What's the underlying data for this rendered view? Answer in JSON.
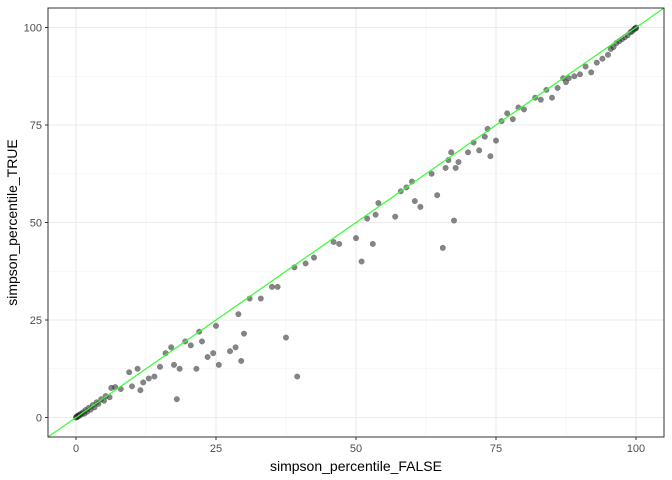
{
  "chart_data": {
    "type": "scatter",
    "title": "",
    "xlabel": "simpson_percentile_FALSE",
    "ylabel": "simpson_percentile_TRUE",
    "xlim": [
      -5,
      105
    ],
    "ylim": [
      -5,
      105
    ],
    "xticks": [
      0,
      25,
      50,
      75,
      100
    ],
    "yticks": [
      0,
      25,
      50,
      75,
      100
    ],
    "x_tick_labels": [
      "0",
      "25",
      "50",
      "75",
      "100"
    ],
    "y_tick_labels": [
      "0",
      "25",
      "50",
      "75",
      "100"
    ],
    "grid": true,
    "reference_line": {
      "slope": 1,
      "intercept": 0,
      "color": "#33ff33"
    },
    "point_color": "#333333",
    "points": [
      [
        0.0,
        0.0
      ],
      [
        0.1,
        0.2
      ],
      [
        0.2,
        0.1
      ],
      [
        0.3,
        0.4
      ],
      [
        0.4,
        0.3
      ],
      [
        0.5,
        0.6
      ],
      [
        0.6,
        0.5
      ],
      [
        0.8,
        0.9
      ],
      [
        1.0,
        0.8
      ],
      [
        1.2,
        1.3
      ],
      [
        1.5,
        1.0
      ],
      [
        1.7,
        1.9
      ],
      [
        2.0,
        1.5
      ],
      [
        2.3,
        2.5
      ],
      [
        2.6,
        2.0
      ],
      [
        3.0,
        3.2
      ],
      [
        3.3,
        2.6
      ],
      [
        3.7,
        3.9
      ],
      [
        4.0,
        3.5
      ],
      [
        4.5,
        4.7
      ],
      [
        5.0,
        4.3
      ],
      [
        5.3,
        5.5
      ],
      [
        6.0,
        5.2
      ],
      [
        6.3,
        7.6
      ],
      [
        7.0,
        7.8
      ],
      [
        8.0,
        7.3
      ],
      [
        9.5,
        11.6
      ],
      [
        10.0,
        8.0
      ],
      [
        11.0,
        12.5
      ],
      [
        11.5,
        7.0
      ],
      [
        12.0,
        9.0
      ],
      [
        13.0,
        10.0
      ],
      [
        14.0,
        10.5
      ],
      [
        15.0,
        13.0
      ],
      [
        16.0,
        16.5
      ],
      [
        17.0,
        18.0
      ],
      [
        17.5,
        13.5
      ],
      [
        18.0,
        4.7
      ],
      [
        18.5,
        12.5
      ],
      [
        19.5,
        19.5
      ],
      [
        20.5,
        18.5
      ],
      [
        21.5,
        12.5
      ],
      [
        22.0,
        22.0
      ],
      [
        22.5,
        19.5
      ],
      [
        23.5,
        15.5
      ],
      [
        24.5,
        16.5
      ],
      [
        25.0,
        23.5
      ],
      [
        25.5,
        13.5
      ],
      [
        27.5,
        17.0
      ],
      [
        28.5,
        18.0
      ],
      [
        29.0,
        26.5
      ],
      [
        29.5,
        14.5
      ],
      [
        30.0,
        21.5
      ],
      [
        31.0,
        30.5
      ],
      [
        33.0,
        30.5
      ],
      [
        35.0,
        33.5
      ],
      [
        36.0,
        33.5
      ],
      [
        37.5,
        20.5
      ],
      [
        39.5,
        10.5
      ],
      [
        39.0,
        38.5
      ],
      [
        41.0,
        39.5
      ],
      [
        42.5,
        41.0
      ],
      [
        46.0,
        45.0
      ],
      [
        47.0,
        44.5
      ],
      [
        50.0,
        46.0
      ],
      [
        51.0,
        40.0
      ],
      [
        52.0,
        51.0
      ],
      [
        53.0,
        44.5
      ],
      [
        53.5,
        52.0
      ],
      [
        54.0,
        55.0
      ],
      [
        57.0,
        51.5
      ],
      [
        58.0,
        58.0
      ],
      [
        59.0,
        59.0
      ],
      [
        60.0,
        60.5
      ],
      [
        60.5,
        55.5
      ],
      [
        61.5,
        54.0
      ],
      [
        63.5,
        62.5
      ],
      [
        64.5,
        57.0
      ],
      [
        65.5,
        43.5
      ],
      [
        66.0,
        64.0
      ],
      [
        66.5,
        66.0
      ],
      [
        67.0,
        68.0
      ],
      [
        67.5,
        50.5
      ],
      [
        67.8,
        64.0
      ],
      [
        68.3,
        65.5
      ],
      [
        70.0,
        68.0
      ],
      [
        71.0,
        70.5
      ],
      [
        72.0,
        68.5
      ],
      [
        73.0,
        72.0
      ],
      [
        73.5,
        74.0
      ],
      [
        74.0,
        67.0
      ],
      [
        75.0,
        71.0
      ],
      [
        76.0,
        76.0
      ],
      [
        77.0,
        78.0
      ],
      [
        78.0,
        76.5
      ],
      [
        79.0,
        79.5
      ],
      [
        80.0,
        79.0
      ],
      [
        82.0,
        82.0
      ],
      [
        83.0,
        81.5
      ],
      [
        84.0,
        84.0
      ],
      [
        85.0,
        82.0
      ],
      [
        86.0,
        84.5
      ],
      [
        87.0,
        87.0
      ],
      [
        87.5,
        86.0
      ],
      [
        88.0,
        87.0
      ],
      [
        89.0,
        87.5
      ],
      [
        90.0,
        88.0
      ],
      [
        91.0,
        90.0
      ],
      [
        92.0,
        88.5
      ],
      [
        93.0,
        91.0
      ],
      [
        94.0,
        92.0
      ],
      [
        95.0,
        93.0
      ],
      [
        95.5,
        94.5
      ],
      [
        96.0,
        95.0
      ],
      [
        96.5,
        96.0
      ],
      [
        97.0,
        96.5
      ],
      [
        97.5,
        97.0
      ],
      [
        98.0,
        97.5
      ],
      [
        98.5,
        98.0
      ],
      [
        99.0,
        98.8
      ],
      [
        99.3,
        99.0
      ],
      [
        99.6,
        99.5
      ],
      [
        99.8,
        99.7
      ],
      [
        100.0,
        100.0
      ],
      [
        100.0,
        99.8
      ]
    ]
  }
}
